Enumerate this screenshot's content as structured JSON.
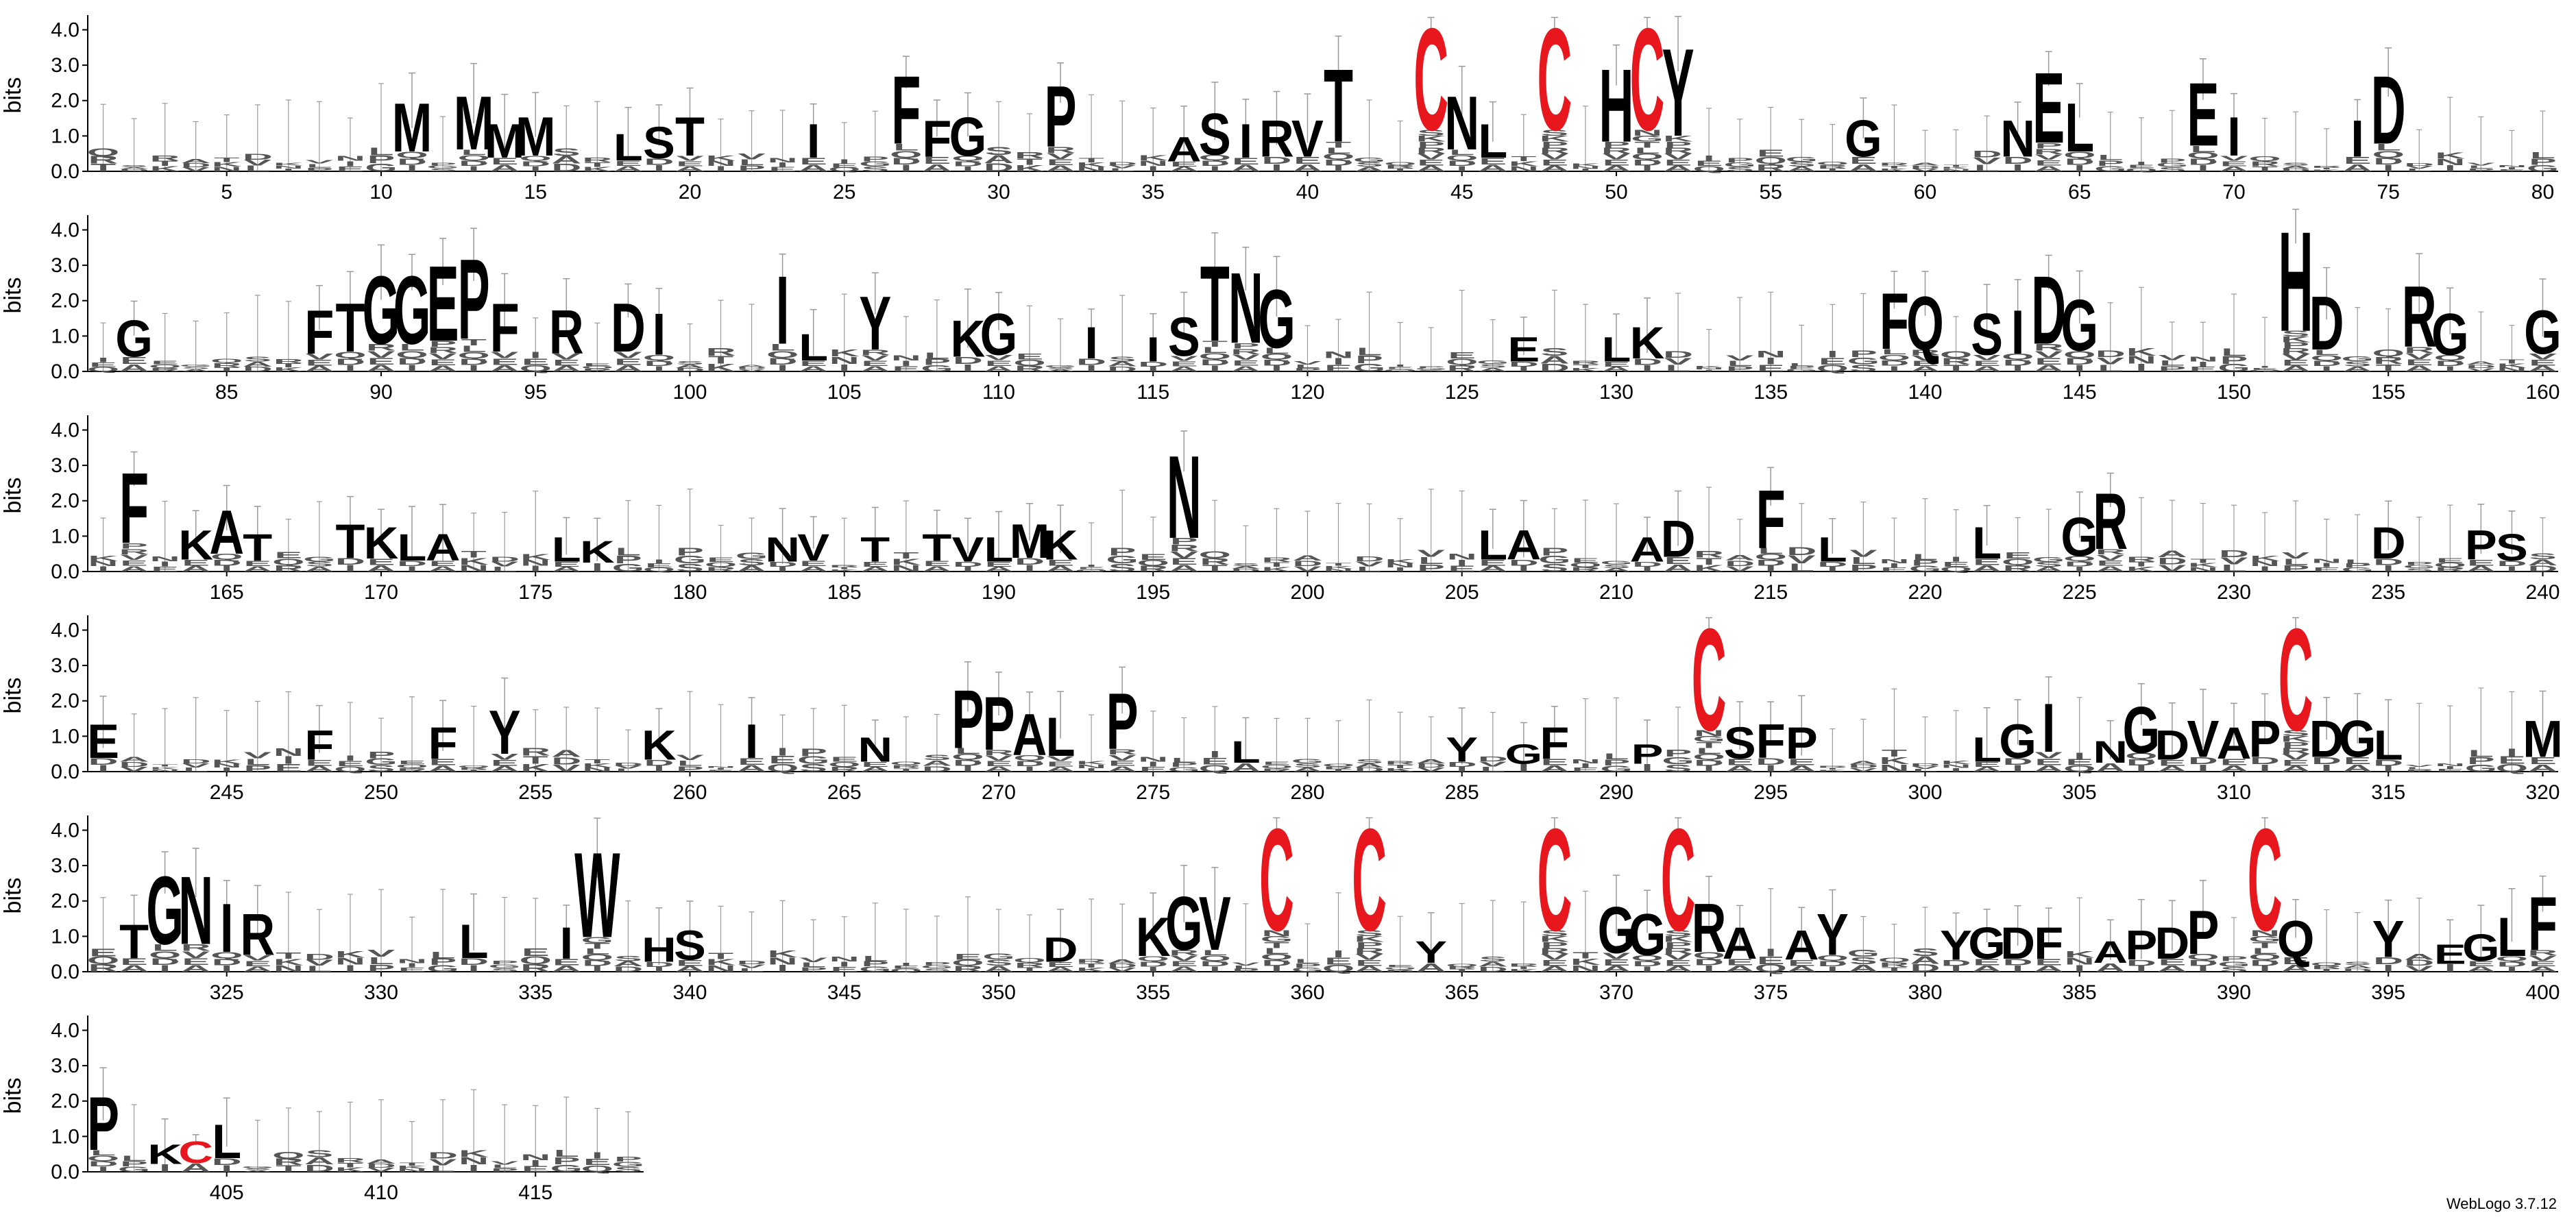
{
  "chart_data": {
    "type": "sequence-logo",
    "ylabel": "bits",
    "ylim": [
      0,
      4.3
    ],
    "yticks": [
      "0.0",
      "1.0",
      "2.0",
      "3.0",
      "4.0"
    ],
    "positions_per_row": 80,
    "x_tick_step": 5,
    "row_position_ranges": [
      [
        1,
        80
      ],
      [
        81,
        160
      ],
      [
        161,
        240
      ],
      [
        241,
        320
      ],
      [
        321,
        400
      ],
      [
        401,
        418
      ]
    ],
    "colors": {
      "conserved_cysteine": "#e8161d",
      "residue": "#000000",
      "error_bar": "#9a9a9a",
      "low_info_stack": "#555555"
    },
    "positions": [
      {
        "pos": 11,
        "letters": "M",
        "bits": 2.0
      },
      {
        "pos": 13,
        "letters": "M",
        "bits": 2.2
      },
      {
        "pos": 14,
        "letters": "M",
        "bits": 1.4
      },
      {
        "pos": 15,
        "letters": "M",
        "bits": 1.6
      },
      {
        "pos": 18,
        "letters": "L",
        "bits": 1.1
      },
      {
        "pos": 19,
        "letters": "S",
        "bits": 1.3
      },
      {
        "pos": 20,
        "letters": "T",
        "bits": 1.6
      },
      {
        "pos": 24,
        "letters": "I",
        "bits": 1.4
      },
      {
        "pos": 27,
        "letters": "F",
        "bits": 2.8
      },
      {
        "pos": 28,
        "letters": "F",
        "bits": 1.5
      },
      {
        "pos": 29,
        "letters": "G",
        "bits": 1.6
      },
      {
        "pos": 32,
        "letters": "P",
        "bits": 2.5
      },
      {
        "pos": 36,
        "letters": "A",
        "bits": 1.0
      },
      {
        "pos": 37,
        "letters": "S",
        "bits": 1.7
      },
      {
        "pos": 38,
        "letters": "I",
        "bits": 1.4
      },
      {
        "pos": 39,
        "letters": "R",
        "bits": 1.5
      },
      {
        "pos": 40,
        "letters": "V",
        "bits": 1.5
      },
      {
        "pos": 41,
        "letters": "T",
        "bits": 3.0
      },
      {
        "pos": 44,
        "letters": "C",
        "bits": 4.2
      },
      {
        "pos": 45,
        "letters": "N",
        "bits": 2.2
      },
      {
        "pos": 46,
        "letters": "L",
        "bits": 1.4
      },
      {
        "pos": 48,
        "letters": "C",
        "bits": 4.2
      },
      {
        "pos": 50,
        "letters": "H",
        "bits": 3.0
      },
      {
        "pos": 51,
        "letters": "C",
        "bits": 4.2
      },
      {
        "pos": 52,
        "letters": "Y",
        "bits": 3.6
      },
      {
        "pos": 58,
        "letters": "G",
        "bits": 1.5
      },
      {
        "pos": 63,
        "letters": "N",
        "bits": 1.5
      },
      {
        "pos": 64,
        "letters": "E",
        "bits": 2.9
      },
      {
        "pos": 65,
        "letters": "L",
        "bits": 2.0
      },
      {
        "pos": 69,
        "letters": "E",
        "bits": 2.6
      },
      {
        "pos": 70,
        "letters": "I",
        "bits": 1.6
      },
      {
        "pos": 74,
        "letters": "I",
        "bits": 1.5
      },
      {
        "pos": 75,
        "letters": "D",
        "bits": 2.8
      },
      {
        "pos": 82,
        "letters": "G",
        "bits": 1.5
      },
      {
        "pos": 88,
        "letters": "F",
        "bits": 1.8
      },
      {
        "pos": 89,
        "letters": "T",
        "bits": 2.0
      },
      {
        "pos": 90,
        "letters": "G",
        "bits": 2.8
      },
      {
        "pos": 91,
        "letters": "G",
        "bits": 2.8
      },
      {
        "pos": 92,
        "letters": "E",
        "bits": 3.1
      },
      {
        "pos": 93,
        "letters": "P",
        "bits": 3.3
      },
      {
        "pos": 94,
        "letters": "F",
        "bits": 2.0
      },
      {
        "pos": 96,
        "letters": "R",
        "bits": 1.8
      },
      {
        "pos": 98,
        "letters": "D",
        "bits": 2.0
      },
      {
        "pos": 99,
        "letters": "I",
        "bits": 1.7
      },
      {
        "pos": 103,
        "letters": "I",
        "bits": 2.8
      },
      {
        "pos": 104,
        "letters": "L",
        "bits": 1.1
      },
      {
        "pos": 106,
        "letters": "Y",
        "bits": 2.2
      },
      {
        "pos": 109,
        "letters": "K",
        "bits": 1.5
      },
      {
        "pos": 110,
        "letters": "G",
        "bits": 1.7
      },
      {
        "pos": 113,
        "letters": "I",
        "bits": 1.3
      },
      {
        "pos": 115,
        "letters": "I",
        "bits": 1.0
      },
      {
        "pos": 116,
        "letters": "S",
        "bits": 1.6
      },
      {
        "pos": 117,
        "letters": "T",
        "bits": 3.1
      },
      {
        "pos": 118,
        "letters": "N",
        "bits": 2.9
      },
      {
        "pos": 119,
        "letters": "G",
        "bits": 2.4
      },
      {
        "pos": 127,
        "letters": "E",
        "bits": 1.0
      },
      {
        "pos": 130,
        "letters": "L",
        "bits": 1.0
      },
      {
        "pos": 131,
        "letters": "K",
        "bits": 1.3
      },
      {
        "pos": 139,
        "letters": "F",
        "bits": 2.3
      },
      {
        "pos": 140,
        "letters": "Q",
        "bits": 2.2
      },
      {
        "pos": 142,
        "letters": "S",
        "bits": 1.7
      },
      {
        "pos": 143,
        "letters": "I",
        "bits": 1.8
      },
      {
        "pos": 144,
        "letters": "D",
        "bits": 2.8
      },
      {
        "pos": 145,
        "letters": "G",
        "bits": 2.1
      },
      {
        "pos": 152,
        "letters": "H",
        "bits": 4.1
      },
      {
        "pos": 153,
        "letters": "D",
        "bits": 2.2
      },
      {
        "pos": 156,
        "letters": "R",
        "bits": 2.5
      },
      {
        "pos": 157,
        "letters": "G",
        "bits": 1.7
      },
      {
        "pos": 160,
        "letters": "G",
        "bits": 1.8
      },
      {
        "pos": 162,
        "letters": "F",
        "bits": 2.9
      },
      {
        "pos": 164,
        "letters": "K",
        "bits": 1.2
      },
      {
        "pos": 165,
        "letters": "A",
        "bits": 1.8
      },
      {
        "pos": 166,
        "letters": "T",
        "bits": 1.1
      },
      {
        "pos": 169,
        "letters": "T",
        "bits": 1.4
      },
      {
        "pos": 170,
        "letters": "K",
        "bits": 1.3
      },
      {
        "pos": 171,
        "letters": "L",
        "bits": 1.1
      },
      {
        "pos": 172,
        "letters": "A",
        "bits": 1.1
      },
      {
        "pos": 176,
        "letters": "L",
        "bits": 1.0
      },
      {
        "pos": 177,
        "letters": "K",
        "bits": 0.9
      },
      {
        "pos": 183,
        "letters": "N",
        "bits": 1.0
      },
      {
        "pos": 184,
        "letters": "V",
        "bits": 1.1
      },
      {
        "pos": 186,
        "letters": "T",
        "bits": 1.0
      },
      {
        "pos": 188,
        "letters": "T",
        "bits": 1.1
      },
      {
        "pos": 189,
        "letters": "V",
        "bits": 1.0
      },
      {
        "pos": 190,
        "letters": "L",
        "bits": 1.0
      },
      {
        "pos": 191,
        "letters": "M",
        "bits": 1.4
      },
      {
        "pos": 192,
        "letters": "K",
        "bits": 1.2
      },
      {
        "pos": 196,
        "letters": "N",
        "bits": 3.4
      },
      {
        "pos": 206,
        "letters": "L",
        "bits": 1.2
      },
      {
        "pos": 207,
        "letters": "A",
        "bits": 1.2
      },
      {
        "pos": 211,
        "letters": "A",
        "bits": 1.0
      },
      {
        "pos": 212,
        "letters": "D",
        "bits": 1.5
      },
      {
        "pos": 215,
        "letters": "F",
        "bits": 2.4
      },
      {
        "pos": 217,
        "letters": "L",
        "bits": 1.0
      },
      {
        "pos": 222,
        "letters": "L",
        "bits": 1.3
      },
      {
        "pos": 225,
        "letters": "G",
        "bits": 1.6
      },
      {
        "pos": 226,
        "letters": "R",
        "bits": 2.3
      },
      {
        "pos": 235,
        "letters": "D",
        "bits": 1.3
      },
      {
        "pos": 238,
        "letters": "P",
        "bits": 1.2
      },
      {
        "pos": 239,
        "letters": "S",
        "bits": 1.1
      },
      {
        "pos": 241,
        "letters": "E",
        "bits": 1.4
      },
      {
        "pos": 248,
        "letters": "F",
        "bits": 1.2
      },
      {
        "pos": 252,
        "letters": "F",
        "bits": 1.3
      },
      {
        "pos": 254,
        "letters": "Y",
        "bits": 1.8
      },
      {
        "pos": 259,
        "letters": "K",
        "bits": 1.2
      },
      {
        "pos": 262,
        "letters": "I",
        "bits": 1.4
      },
      {
        "pos": 266,
        "letters": "N",
        "bits": 1.0
      },
      {
        "pos": 269,
        "letters": "P",
        "bits": 2.4
      },
      {
        "pos": 270,
        "letters": "P",
        "bits": 2.2
      },
      {
        "pos": 271,
        "letters": "A",
        "bits": 1.7
      },
      {
        "pos": 272,
        "letters": "L",
        "bits": 1.6
      },
      {
        "pos": 274,
        "letters": "P",
        "bits": 2.3
      },
      {
        "pos": 278,
        "letters": "L",
        "bits": 0.9
      },
      {
        "pos": 285,
        "letters": "Y",
        "bits": 1.0
      },
      {
        "pos": 287,
        "letters": "G",
        "bits": 0.8
      },
      {
        "pos": 288,
        "letters": "F",
        "bits": 1.3
      },
      {
        "pos": 291,
        "letters": "P",
        "bits": 0.8
      },
      {
        "pos": 293,
        "letters": "C",
        "bits": 4.2
      },
      {
        "pos": 294,
        "letters": "S",
        "bits": 1.3
      },
      {
        "pos": 295,
        "letters": "F",
        "bits": 1.4
      },
      {
        "pos": 296,
        "letters": "P",
        "bits": 1.3
      },
      {
        "pos": 302,
        "letters": "L",
        "bits": 1.0
      },
      {
        "pos": 303,
        "letters": "G",
        "bits": 1.4
      },
      {
        "pos": 304,
        "letters": "I",
        "bits": 2.0
      },
      {
        "pos": 306,
        "letters": "N",
        "bits": 0.9
      },
      {
        "pos": 307,
        "letters": "G",
        "bits": 1.9
      },
      {
        "pos": 308,
        "letters": "D",
        "bits": 1.2
      },
      {
        "pos": 309,
        "letters": "V",
        "bits": 1.5
      },
      {
        "pos": 310,
        "letters": "A",
        "bits": 1.3
      },
      {
        "pos": 311,
        "letters": "P",
        "bits": 1.5
      },
      {
        "pos": 312,
        "letters": "C",
        "bits": 4.2
      },
      {
        "pos": 313,
        "letters": "D",
        "bits": 1.5
      },
      {
        "pos": 314,
        "letters": "G",
        "bits": 1.5
      },
      {
        "pos": 315,
        "letters": "L",
        "bits": 1.2
      },
      {
        "pos": 320,
        "letters": "M",
        "bits": 1.5
      },
      {
        "pos": 322,
        "letters": "T",
        "bits": 1.4
      },
      {
        "pos": 323,
        "letters": "G",
        "bits": 2.8
      },
      {
        "pos": 324,
        "letters": "N",
        "bits": 2.8
      },
      {
        "pos": 325,
        "letters": "I",
        "bits": 2.0
      },
      {
        "pos": 326,
        "letters": "R",
        "bits": 1.7
      },
      {
        "pos": 333,
        "letters": "L",
        "bits": 1.4
      },
      {
        "pos": 336,
        "letters": "I",
        "bits": 1.3
      },
      {
        "pos": 337,
        "letters": "W",
        "bits": 3.5
      },
      {
        "pos": 339,
        "letters": "H",
        "bits": 1.0
      },
      {
        "pos": 340,
        "letters": "S",
        "bits": 1.2
      },
      {
        "pos": 352,
        "letters": "D",
        "bits": 1.0
      },
      {
        "pos": 355,
        "letters": "K",
        "bits": 1.6
      },
      {
        "pos": 356,
        "letters": "G",
        "bits": 2.2
      },
      {
        "pos": 357,
        "letters": "V",
        "bits": 2.2
      },
      {
        "pos": 359,
        "letters": "C",
        "bits": 4.2
      },
      {
        "pos": 362,
        "letters": "C",
        "bits": 4.2
      },
      {
        "pos": 364,
        "letters": "Y",
        "bits": 0.9
      },
      {
        "pos": 368,
        "letters": "C",
        "bits": 4.2
      },
      {
        "pos": 370,
        "letters": "G",
        "bits": 1.9
      },
      {
        "pos": 371,
        "letters": "G",
        "bits": 1.7
      },
      {
        "pos": 372,
        "letters": "C",
        "bits": 4.2
      },
      {
        "pos": 373,
        "letters": "R",
        "bits": 2.0
      },
      {
        "pos": 374,
        "letters": "A",
        "bits": 1.3
      },
      {
        "pos": 376,
        "letters": "A",
        "bits": 1.2
      },
      {
        "pos": 377,
        "letters": "Y",
        "bits": 1.7
      },
      {
        "pos": 381,
        "letters": "Y",
        "bits": 1.2
      },
      {
        "pos": 382,
        "letters": "G",
        "bits": 1.3
      },
      {
        "pos": 383,
        "letters": "D",
        "bits": 1.3
      },
      {
        "pos": 384,
        "letters": "F",
        "bits": 1.3
      },
      {
        "pos": 386,
        "letters": "A",
        "bits": 0.9
      },
      {
        "pos": 387,
        "letters": "P",
        "bits": 1.2
      },
      {
        "pos": 388,
        "letters": "D",
        "bits": 1.3
      },
      {
        "pos": 389,
        "letters": "P",
        "bits": 1.8
      },
      {
        "pos": 391,
        "letters": "C",
        "bits": 4.2
      },
      {
        "pos": 392,
        "letters": "Q",
        "bits": 1.5
      },
      {
        "pos": 395,
        "letters": "Y",
        "bits": 1.5
      },
      {
        "pos": 397,
        "letters": "E",
        "bits": 0.8
      },
      {
        "pos": 398,
        "letters": "G",
        "bits": 1.1
      },
      {
        "pos": 399,
        "letters": "L",
        "bits": 1.6
      },
      {
        "pos": 400,
        "letters": "F",
        "bits": 2.2
      },
      {
        "pos": 401,
        "letters": "P",
        "bits": 2.2
      },
      {
        "pos": 403,
        "letters": "K",
        "bits": 0.8
      },
      {
        "pos": 404,
        "letters": "C",
        "bits": 0.9
      },
      {
        "pos": 405,
        "letters": "L",
        "bits": 1.4
      }
    ]
  },
  "credit": "WebLogo 3.7.12"
}
